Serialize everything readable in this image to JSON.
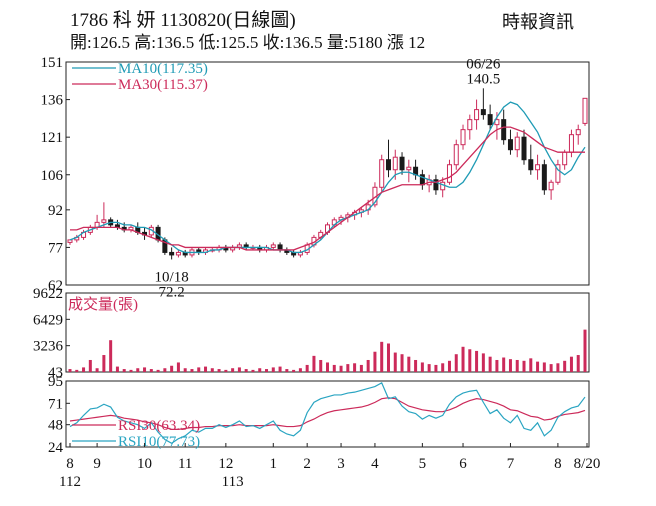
{
  "header": {
    "title": "1786 科 妍 1130820(日線圖)",
    "publisher": "時報資訊",
    "quote": "開:126.5 高:136.5 低:125.5 收:136.5 量:5180 漲 12"
  },
  "colors": {
    "ma10": "#1f9bb5",
    "ma30": "#cc2a5a",
    "candle_up": "#cc2a5a",
    "candle_down": "#1a1a1a",
    "volume": "#cc2a5a",
    "rsi10": "#2aa5c2",
    "rsi30": "#cc2a5a",
    "frame": "#222222"
  },
  "chart_data": [
    {
      "type": "candlestick",
      "panel": "price",
      "ylim": [
        62,
        151
      ],
      "y_ticks": [
        "151",
        "136",
        "121",
        "106",
        "92",
        "77",
        "62"
      ],
      "series": [
        {
          "name": "MA10(117.35)",
          "values": [
            80,
            81,
            83,
            84,
            85,
            86,
            87,
            87,
            86,
            86,
            85,
            85,
            84,
            82,
            80,
            78,
            76,
            75,
            75,
            75,
            75,
            76,
            76,
            77,
            77,
            77,
            77,
            77,
            77,
            77,
            76,
            76,
            76,
            75,
            75,
            76,
            78,
            80,
            83,
            86,
            88,
            89,
            90,
            91,
            92,
            95,
            99,
            103,
            106,
            107,
            107,
            106,
            105,
            104,
            103,
            102,
            101,
            101,
            103,
            107,
            112,
            118,
            124,
            129,
            133,
            135,
            134,
            131,
            127,
            123,
            117,
            112,
            108,
            106,
            108,
            113,
            117
          ]
        },
        {
          "name": "MA30(115.37)",
          "values": [
            84,
            84,
            85,
            85,
            85,
            85,
            85,
            85,
            84,
            84,
            83,
            82,
            81,
            80,
            79,
            78,
            78,
            77,
            77,
            77,
            77,
            77,
            77,
            77,
            77,
            77,
            76,
            76,
            76,
            76,
            76,
            76,
            76,
            76,
            77,
            78,
            79,
            81,
            83,
            85,
            87,
            89,
            91,
            93,
            95,
            97,
            99,
            100,
            101,
            102,
            102,
            102,
            102,
            103,
            103,
            104,
            105,
            107,
            110,
            113,
            116,
            119,
            122,
            124,
            125,
            125,
            124,
            123,
            121,
            119,
            117,
            116,
            115,
            115,
            115,
            115,
            115
          ]
        }
      ],
      "candles": [
        [
          79,
          80,
          78,
          80
        ],
        [
          80,
          82,
          79,
          81
        ],
        [
          81,
          84,
          80,
          83
        ],
        [
          83,
          86,
          82,
          85
        ],
        [
          85,
          90,
          84,
          87
        ],
        [
          87,
          95,
          85,
          88
        ],
        [
          88,
          89,
          85,
          86
        ],
        [
          86,
          88,
          84,
          85
        ],
        [
          85,
          87,
          83,
          84
        ],
        [
          84,
          86,
          83,
          85
        ],
        [
          85,
          87,
          82,
          83
        ],
        [
          83,
          85,
          80,
          82
        ],
        [
          82,
          86,
          81,
          85
        ],
        [
          85,
          86,
          79,
          80
        ],
        [
          80,
          81,
          74,
          75
        ],
        [
          75,
          77,
          72.2,
          74
        ],
        [
          74,
          76,
          73,
          75
        ],
        [
          75,
          76,
          73,
          74
        ],
        [
          74,
          77,
          73,
          76
        ],
        [
          76,
          77,
          74,
          75
        ],
        [
          75,
          77,
          74,
          76
        ],
        [
          76,
          77,
          75,
          76
        ],
        [
          76,
          78,
          75,
          77
        ],
        [
          77,
          78,
          75,
          76
        ],
        [
          76,
          78,
          75,
          77
        ],
        [
          77,
          79,
          76,
          78
        ],
        [
          78,
          79,
          76,
          77
        ],
        [
          77,
          78,
          76,
          77
        ],
        [
          77,
          78,
          75,
          76
        ],
        [
          76,
          78,
          75,
          77
        ],
        [
          77,
          79,
          76,
          78
        ],
        [
          78,
          79,
          75,
          76
        ],
        [
          76,
          77,
          74,
          75
        ],
        [
          75,
          76,
          73,
          74
        ],
        [
          74,
          76,
          73,
          75
        ],
        [
          75,
          79,
          74,
          78
        ],
        [
          78,
          82,
          77,
          81
        ],
        [
          81,
          84,
          80,
          83
        ],
        [
          83,
          87,
          82,
          86
        ],
        [
          86,
          89,
          85,
          88
        ],
        [
          88,
          90,
          86,
          89
        ],
        [
          89,
          91,
          87,
          90
        ],
        [
          90,
          92,
          88,
          91
        ],
        [
          91,
          93,
          89,
          92
        ],
        [
          92,
          96,
          90,
          94
        ],
        [
          94,
          103,
          93,
          101
        ],
        [
          101,
          114,
          99,
          112
        ],
        [
          112,
          120,
          105,
          108
        ],
        [
          108,
          116,
          104,
          113
        ],
        [
          113,
          115,
          106,
          108
        ],
        [
          108,
          112,
          103,
          109
        ],
        [
          109,
          112,
          104,
          106
        ],
        [
          106,
          108,
          100,
          102
        ],
        [
          102,
          106,
          99,
          104
        ],
        [
          104,
          106,
          98,
          100
        ],
        [
          100,
          105,
          97,
          103
        ],
        [
          103,
          112,
          102,
          110
        ],
        [
          110,
          120,
          108,
          118
        ],
        [
          118,
          126,
          116,
          124
        ],
        [
          124,
          130,
          120,
          128
        ],
        [
          128,
          136,
          124,
          132
        ],
        [
          132,
          140.5,
          128,
          130
        ],
        [
          130,
          134,
          124,
          126
        ],
        [
          126,
          131,
          120,
          128
        ],
        [
          128,
          132,
          118,
          120
        ],
        [
          120,
          124,
          114,
          116
        ],
        [
          116,
          123,
          113,
          121
        ],
        [
          121,
          124,
          110,
          112
        ],
        [
          112,
          118,
          106,
          108
        ],
        [
          108,
          114,
          104,
          110
        ],
        [
          110,
          112,
          98,
          100
        ],
        [
          100,
          104,
          96,
          103
        ],
        [
          103,
          112,
          102,
          110
        ],
        [
          110,
          116,
          108,
          115
        ],
        [
          115,
          124,
          113,
          122
        ],
        [
          122,
          126,
          118,
          124
        ],
        [
          126.5,
          136.5,
          125.5,
          136.5
        ]
      ],
      "annotations": [
        {
          "text": "10/18",
          "sub": "72.2",
          "index": 15,
          "value": 72.2
        },
        {
          "text": "06/26",
          "sub": "140.5",
          "index": 61,
          "value": 140.5
        }
      ]
    },
    {
      "type": "bar",
      "panel": "volume",
      "title": "成交量(張)",
      "ylim": [
        43,
        9622
      ],
      "y_ticks": [
        "9622",
        "6429",
        "3236",
        "43"
      ],
      "values": [
        400,
        300,
        600,
        1500,
        500,
        2100,
        3900,
        700,
        400,
        300,
        500,
        600,
        400,
        300,
        500,
        800,
        1200,
        500,
        400,
        600,
        700,
        500,
        400,
        300,
        500,
        600,
        400,
        300,
        500,
        400,
        600,
        700,
        400,
        300,
        500,
        900,
        2000,
        1500,
        1200,
        900,
        800,
        1000,
        1100,
        900,
        1500,
        2500,
        3700,
        3500,
        2400,
        2200,
        1900,
        1500,
        1200,
        1000,
        900,
        1100,
        1400,
        2200,
        3100,
        2800,
        2600,
        2300,
        1900,
        1500,
        1800,
        1600,
        1500,
        1400,
        1700,
        1300,
        1200,
        1000,
        1100,
        1400,
        1900,
        2100,
        5180
      ]
    },
    {
      "type": "line",
      "panel": "rsi",
      "ylim": [
        24,
        95
      ],
      "y_ticks": [
        "95",
        "71",
        "48",
        "24"
      ],
      "series": [
        {
          "name": "RSI30(63.34)",
          "values": [
            52,
            53,
            54,
            55,
            56,
            57,
            58,
            57,
            55,
            54,
            53,
            51,
            50,
            48,
            45,
            43,
            43,
            44,
            45,
            45,
            46,
            46,
            47,
            47,
            47,
            48,
            47,
            47,
            47,
            47,
            48,
            47,
            46,
            46,
            47,
            51,
            54,
            58,
            61,
            63,
            64,
            65,
            66,
            67,
            69,
            72,
            76,
            77,
            76,
            72,
            68,
            66,
            64,
            63,
            62,
            62,
            64,
            67,
            71,
            74,
            76,
            75,
            73,
            71,
            68,
            64,
            63,
            60,
            57,
            56,
            53,
            54,
            57,
            59,
            60,
            61,
            63.34
          ]
        },
        {
          "name": "RSI10(77.73)",
          "values": [
            46,
            50,
            58,
            65,
            66,
            70,
            67,
            56,
            52,
            50,
            48,
            44,
            50,
            40,
            32,
            28,
            33,
            36,
            42,
            40,
            44,
            44,
            48,
            45,
            48,
            52,
            46,
            47,
            44,
            48,
            52,
            42,
            38,
            36,
            42,
            61,
            72,
            76,
            78,
            80,
            80,
            82,
            83,
            85,
            87,
            89,
            93,
            76,
            78,
            68,
            62,
            60,
            54,
            58,
            55,
            58,
            70,
            78,
            82,
            84,
            85,
            72,
            60,
            64,
            55,
            50,
            58,
            44,
            42,
            50,
            36,
            42,
            56,
            62,
            66,
            68,
            77.73
          ]
        }
      ]
    }
  ],
  "x_axis": {
    "months": [
      "8",
      "9",
      "10",
      "11",
      "12",
      "1",
      "2",
      "3",
      "4",
      "5",
      "6",
      "7",
      "8",
      "8/20"
    ],
    "years": [
      "112",
      "113"
    ]
  }
}
